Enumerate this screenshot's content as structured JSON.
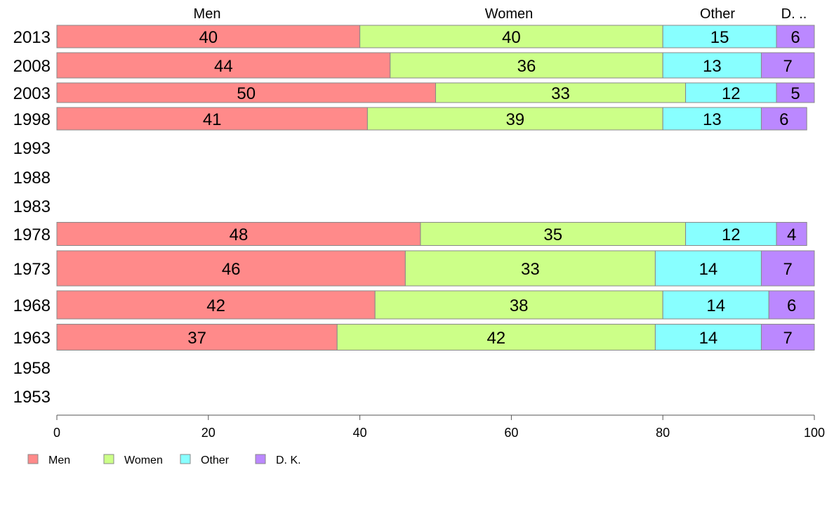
{
  "chart_data": {
    "type": "bar",
    "orientation": "horizontal",
    "stacked": true,
    "categories": [
      "2013",
      "2008",
      "2003",
      "1998",
      "1993",
      "1988",
      "1983",
      "1978",
      "1973",
      "1968",
      "1963",
      "1958",
      "1953"
    ],
    "series": [
      {
        "name": "Men",
        "color": "#ff8a8a",
        "values": [
          40,
          44,
          50,
          41,
          null,
          null,
          null,
          48,
          46,
          42,
          37,
          null,
          null
        ]
      },
      {
        "name": "Women",
        "color": "#ccff88",
        "values": [
          40,
          36,
          33,
          39,
          null,
          null,
          null,
          35,
          33,
          38,
          42,
          null,
          null
        ]
      },
      {
        "name": "Other",
        "color": "#88ffff",
        "values": [
          15,
          13,
          12,
          13,
          null,
          null,
          null,
          12,
          14,
          14,
          14,
          null,
          null
        ]
      },
      {
        "name": "D. K.",
        "color": "#bb88ff",
        "values": [
          6,
          7,
          5,
          6,
          null,
          null,
          null,
          4,
          7,
          6,
          7,
          null,
          null
        ]
      }
    ],
    "column_labels": [
      "Men",
      "Women",
      "Other",
      "D. .."
    ],
    "xlim": [
      0,
      100
    ],
    "xticks": [
      0,
      20,
      40,
      60,
      80,
      100
    ],
    "legend_position": "bottom-left",
    "grid": false
  }
}
